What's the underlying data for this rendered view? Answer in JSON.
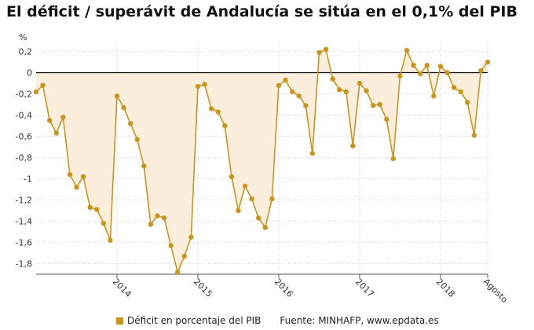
{
  "title": "El déficit / superávit de Andalucía se sitúa en el 0,1% del PIB",
  "colors": {
    "line": "#c8961e",
    "area": "#fbeedd",
    "zero": "#000000",
    "grid": "#d5d5d5"
  },
  "legend": {
    "label": "Déficit en porcentaje del PIB"
  },
  "source": "Fuente: MINHAFP, www.epdata.es",
  "chart_data": {
    "type": "line",
    "title": "El déficit / superávit de Andalucía se sitúa en el 0,1% del PIB",
    "ylabel": "%",
    "ylim": [
      -1.9,
      0.3
    ],
    "yticks": [
      0.2,
      0,
      -0.2,
      -0.4,
      -0.6,
      -0.8,
      -1,
      -1.2,
      -1.4,
      -1.6,
      -1.8
    ],
    "ytick_labels": [
      "0,2",
      "0",
      "-0,2",
      "-0,4",
      "-0,6",
      "-0,8",
      "-1",
      "-1,2",
      "-1,4",
      "-1,6",
      "-1,8"
    ],
    "x_start": "2013-01",
    "x_end": "2018-08",
    "xticks": [
      {
        "label": "2014",
        "date": "2014-01"
      },
      {
        "label": "2015",
        "date": "2015-01"
      },
      {
        "label": "2016",
        "date": "2016-01"
      },
      {
        "label": "2017",
        "date": "2017-01"
      },
      {
        "label": "2018",
        "date": "2018-01"
      },
      {
        "label": "Agosto",
        "date": "2018-08"
      }
    ],
    "grid": true,
    "legend_position": "bottom",
    "series": [
      {
        "name": "Déficit en porcentaje del PIB",
        "x": [
          "2013-01",
          "2013-02",
          "2013-03",
          "2013-04",
          "2013-05",
          "2013-06",
          "2013-07",
          "2013-08",
          "2013-09",
          "2013-10",
          "2013-11",
          "2013-12",
          "2014-01",
          "2014-02",
          "2014-03",
          "2014-04",
          "2014-05",
          "2014-06",
          "2014-07",
          "2014-08",
          "2014-09",
          "2014-10",
          "2014-11",
          "2014-12",
          "2015-01",
          "2015-02",
          "2015-03",
          "2015-04",
          "2015-05",
          "2015-06",
          "2015-07",
          "2015-08",
          "2015-09",
          "2015-10",
          "2015-11",
          "2015-12",
          "2016-01",
          "2016-02",
          "2016-03",
          "2016-04",
          "2016-05",
          "2016-06",
          "2016-07",
          "2016-08",
          "2016-09",
          "2016-10",
          "2016-11",
          "2016-12",
          "2017-01",
          "2017-02",
          "2017-03",
          "2017-04",
          "2017-05",
          "2017-06",
          "2017-07",
          "2017-08",
          "2017-09",
          "2017-10",
          "2017-11",
          "2017-12",
          "2018-01",
          "2018-02",
          "2018-03",
          "2018-04",
          "2018-05",
          "2018-06",
          "2018-07",
          "2018-08"
        ],
        "values": [
          -0.18,
          -0.12,
          -0.45,
          -0.57,
          -0.42,
          -0.96,
          -1.08,
          -0.98,
          -1.27,
          -1.29,
          -1.42,
          -1.58,
          -0.22,
          -0.33,
          -0.48,
          -0.63,
          -0.88,
          -1.43,
          -1.35,
          -1.37,
          -1.63,
          -1.88,
          -1.73,
          -1.55,
          -0.13,
          -0.11,
          -0.34,
          -0.37,
          -0.5,
          -0.98,
          -1.3,
          -1.07,
          -1.19,
          -1.37,
          -1.46,
          -1.19,
          -0.12,
          -0.07,
          -0.18,
          -0.22,
          -0.31,
          -0.76,
          0.19,
          0.22,
          -0.06,
          -0.16,
          -0.18,
          -0.69,
          -0.1,
          -0.17,
          -0.31,
          -0.3,
          -0.44,
          -0.81,
          -0.03,
          0.21,
          0.07,
          -0.01,
          0.07,
          -0.22,
          0.06,
          0.0,
          -0.14,
          -0.18,
          -0.28,
          -0.59,
          0.02,
          0.1
        ]
      }
    ]
  }
}
